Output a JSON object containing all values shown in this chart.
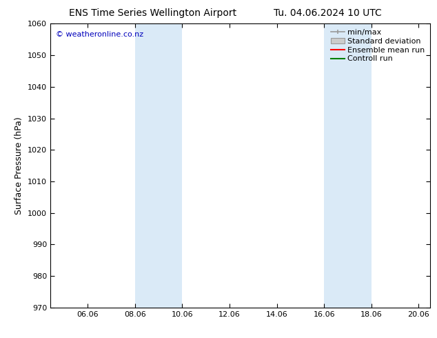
{
  "title_left": "ENS Time Series Wellington Airport",
  "title_right": "Tu. 04.06.2024 10 UTC",
  "ylabel": "Surface Pressure (hPa)",
  "ylim": [
    970,
    1060
  ],
  "yticks": [
    970,
    980,
    990,
    1000,
    1010,
    1020,
    1030,
    1040,
    1050,
    1060
  ],
  "xtick_labels": [
    "06.06",
    "08.06",
    "10.06",
    "12.06",
    "14.06",
    "16.06",
    "18.06",
    "20.06"
  ],
  "xtick_positions": [
    1.583,
    3.583,
    5.583,
    7.583,
    9.583,
    11.583,
    13.583,
    15.583
  ],
  "xlim": [
    0,
    16.083
  ],
  "shaded_bands": [
    {
      "x_start": 3.583,
      "x_end": 5.583,
      "color": "#daeaf7"
    },
    {
      "x_start": 11.583,
      "x_end": 13.583,
      "color": "#daeaf7"
    }
  ],
  "watermark": "© weatheronline.co.nz",
  "watermark_color": "#0000bb",
  "legend_items": [
    {
      "label": "min/max",
      "color": "#aaaaaa",
      "style": "line_with_caps"
    },
    {
      "label": "Standard deviation",
      "color": "#cccccc",
      "style": "filled_box"
    },
    {
      "label": "Ensemble mean run",
      "color": "#ff0000",
      "style": "line"
    },
    {
      "label": "Controll run",
      "color": "#008000",
      "style": "line"
    }
  ],
  "background_color": "#ffffff",
  "title_fontsize": 10,
  "legend_fontsize": 8,
  "axis_fontsize": 8,
  "ylabel_fontsize": 9
}
